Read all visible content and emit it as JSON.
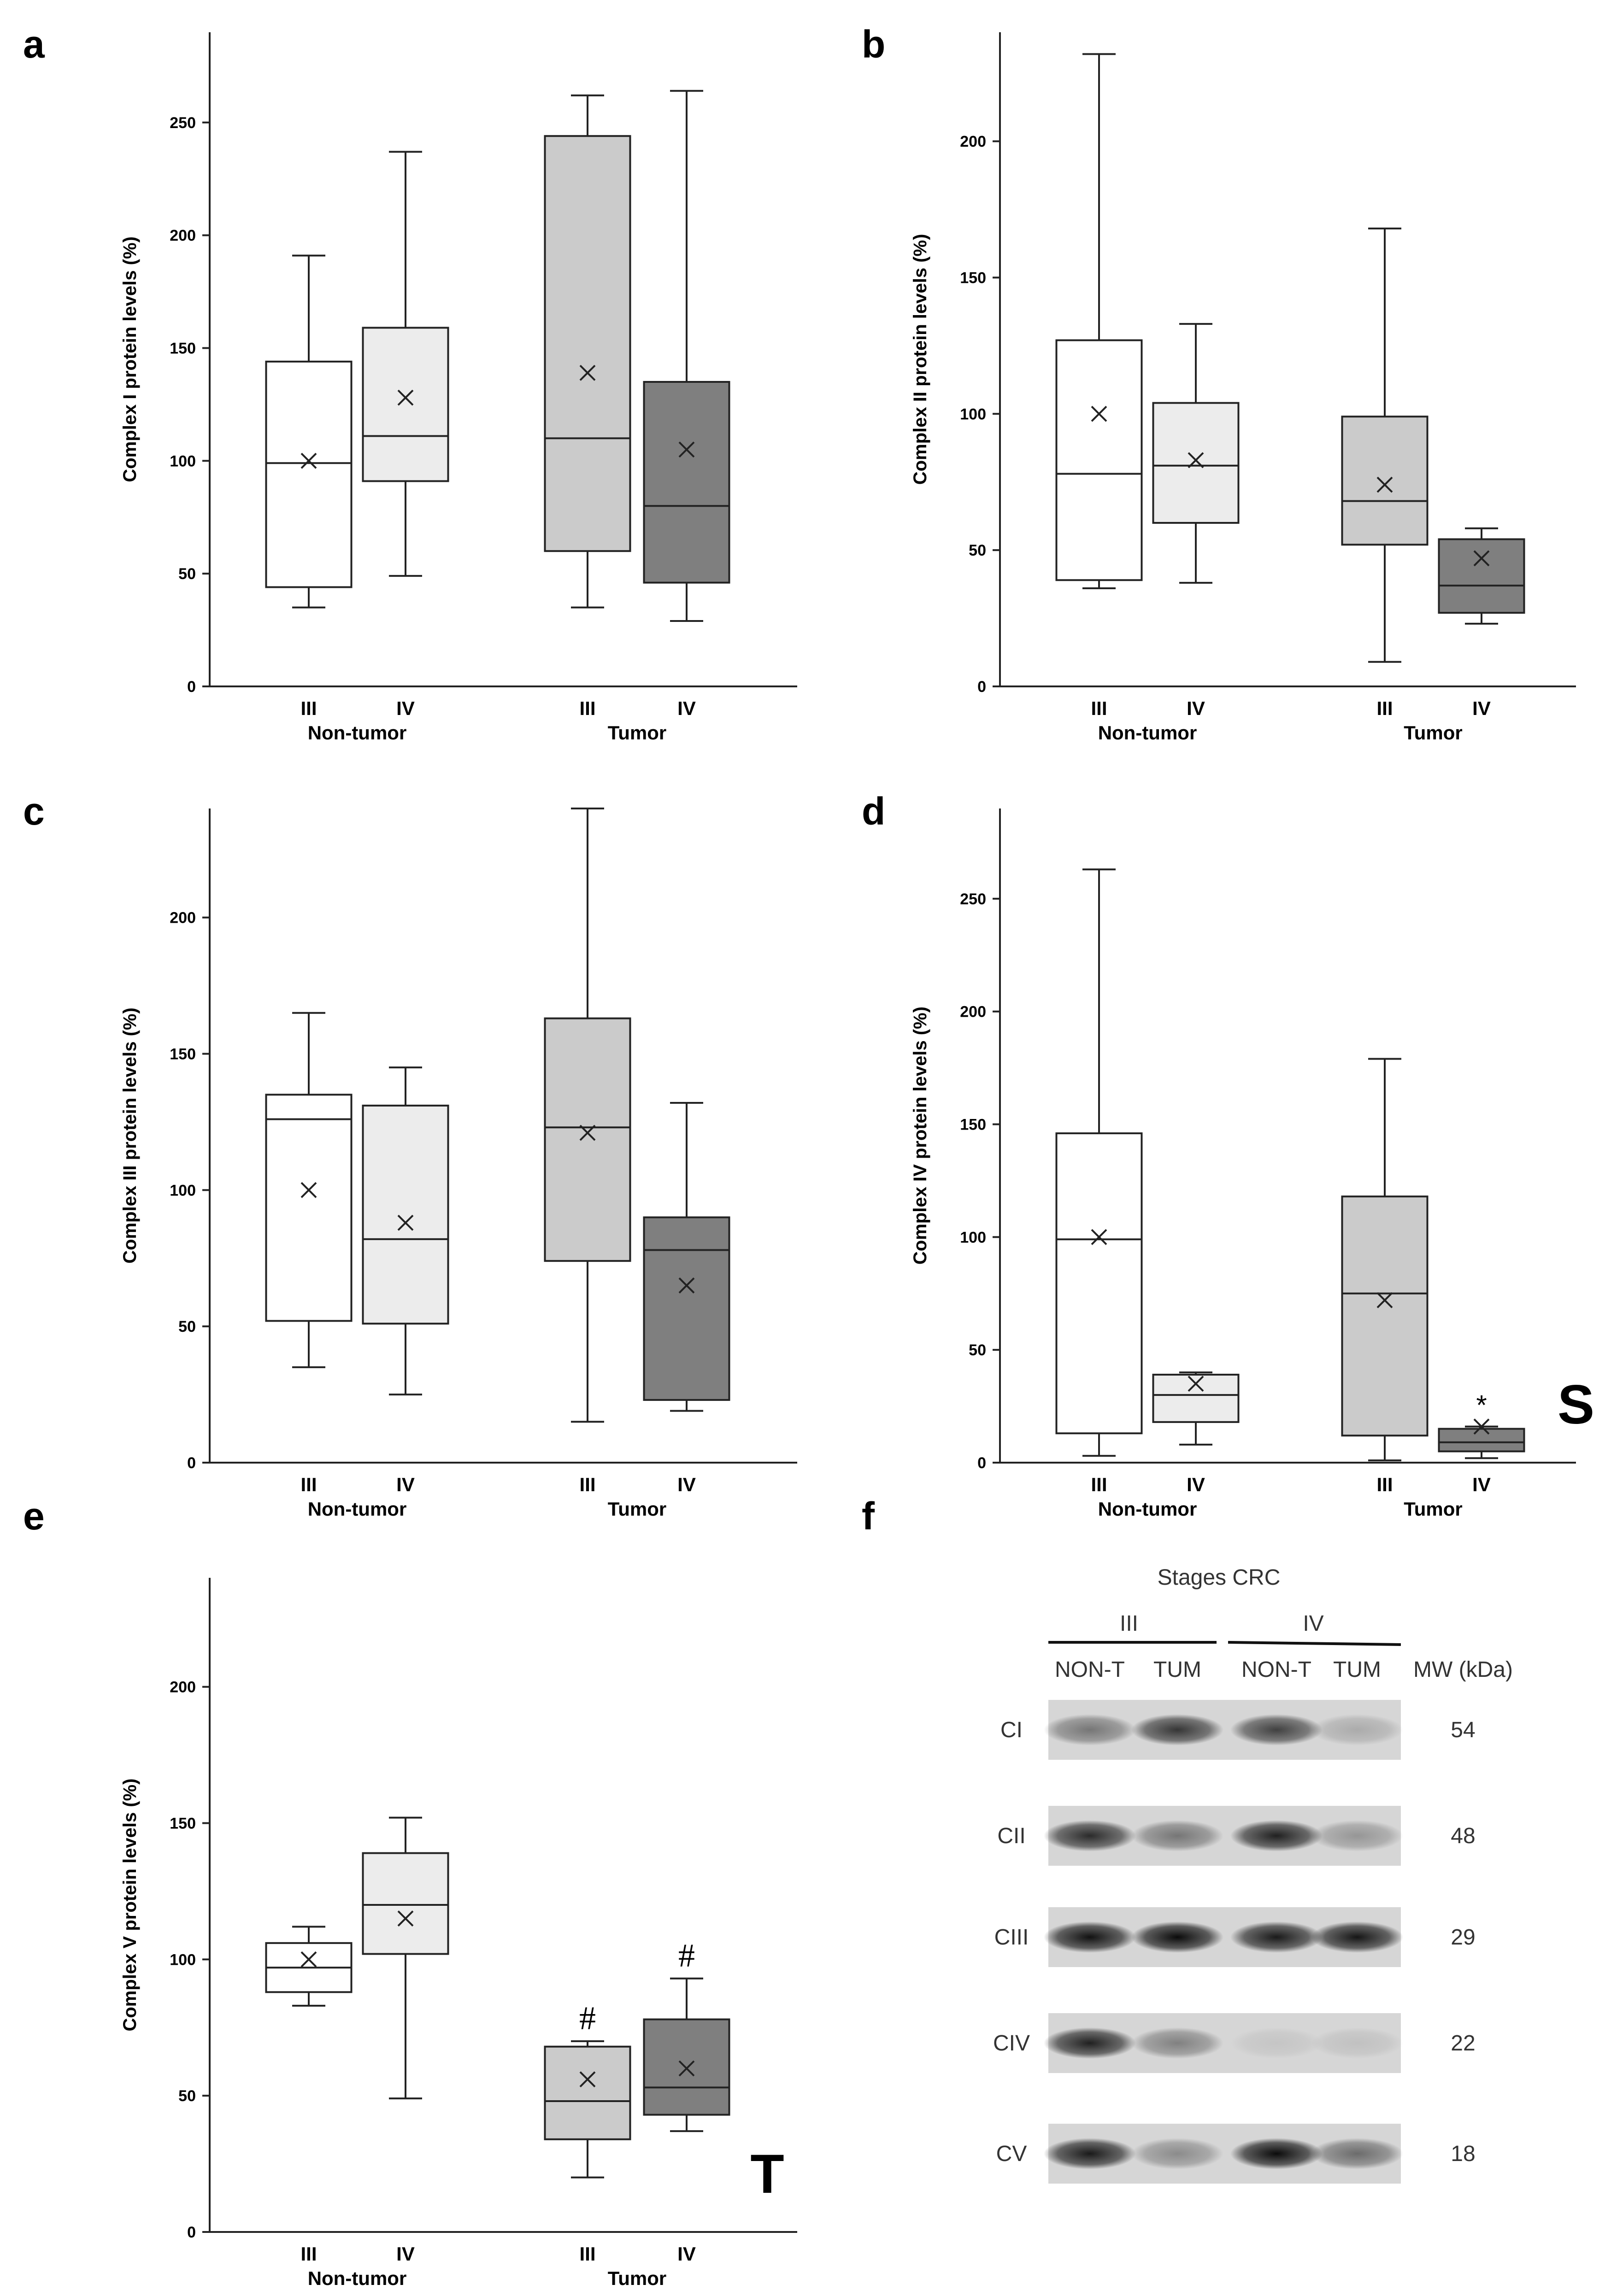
{
  "figure": {
    "colors": {
      "non_tumor_III": "#ffffff",
      "non_tumor_IV": "#ececec",
      "tumor_III": "#cbcbcb",
      "tumor_IV": "#7f7f7f",
      "line": "#222222"
    }
  },
  "chart_data": [
    {
      "panel": "a",
      "type": "box",
      "ylabel": "Complex I protein levels (%)",
      "ylim": [
        0,
        290
      ],
      "yticks": [
        0,
        50,
        100,
        150,
        200,
        250
      ],
      "groups": [
        "Non-tumor",
        "Tumor"
      ],
      "stages": [
        "III",
        "IV"
      ],
      "boxes": [
        {
          "group": "Non-tumor",
          "stage": "III",
          "min": 35,
          "q1": 44,
          "median": 99,
          "q3": 144,
          "max": 191,
          "mean": 100
        },
        {
          "group": "Non-tumor",
          "stage": "IV",
          "min": 49,
          "q1": 91,
          "median": 111,
          "q3": 159,
          "max": 237,
          "mean": 128
        },
        {
          "group": "Tumor",
          "stage": "III",
          "min": 35,
          "q1": 60,
          "median": 110,
          "q3": 244,
          "max": 262,
          "mean": 139
        },
        {
          "group": "Tumor",
          "stage": "IV",
          "min": 29,
          "q1": 46,
          "median": 80,
          "q3": 135,
          "max": 264,
          "mean": 105
        }
      ],
      "annotations": []
    },
    {
      "panel": "b",
      "type": "box",
      "ylabel": "Complex II protein levels (%)",
      "ylim": [
        0,
        240
      ],
      "yticks": [
        0,
        50,
        100,
        150,
        200
      ],
      "groups": [
        "Non-tumor",
        "Tumor"
      ],
      "stages": [
        "III",
        "IV"
      ],
      "boxes": [
        {
          "group": "Non-tumor",
          "stage": "III",
          "min": 36,
          "q1": 39,
          "median": 78,
          "q3": 127,
          "max": 232,
          "mean": 100
        },
        {
          "group": "Non-tumor",
          "stage": "IV",
          "min": 38,
          "q1": 60,
          "median": 81,
          "q3": 104,
          "max": 133,
          "mean": 83
        },
        {
          "group": "Tumor",
          "stage": "III",
          "min": 9,
          "q1": 52,
          "median": 68,
          "q3": 99,
          "max": 168,
          "mean": 74
        },
        {
          "group": "Tumor",
          "stage": "IV",
          "min": 23,
          "q1": 27,
          "median": 37,
          "q3": 54,
          "max": 58,
          "mean": 47
        }
      ],
      "annotations": []
    },
    {
      "panel": "c",
      "type": "box",
      "ylabel": "Complex III protein levels (%)",
      "ylim": [
        0,
        240
      ],
      "yticks": [
        0,
        50,
        100,
        150,
        200
      ],
      "groups": [
        "Non-tumor",
        "Tumor"
      ],
      "stages": [
        "III",
        "IV"
      ],
      "boxes": [
        {
          "group": "Non-tumor",
          "stage": "III",
          "min": 35,
          "q1": 52,
          "median": 126,
          "q3": 135,
          "max": 165,
          "mean": 100
        },
        {
          "group": "Non-tumor",
          "stage": "IV",
          "min": 25,
          "q1": 51,
          "median": 82,
          "q3": 131,
          "max": 145,
          "mean": 88
        },
        {
          "group": "Tumor",
          "stage": "III",
          "min": 15,
          "q1": 74,
          "median": 123,
          "q3": 163,
          "max": 240,
          "mean": 121
        },
        {
          "group": "Tumor",
          "stage": "IV",
          "min": 19,
          "q1": 23,
          "median": 78,
          "q3": 90,
          "max": 132,
          "mean": 65
        }
      ],
      "annotations": []
    },
    {
      "panel": "d",
      "type": "box",
      "ylabel": "Complex IV protein levels (%)",
      "ylim": [
        0,
        290
      ],
      "yticks": [
        0,
        50,
        100,
        150,
        200,
        250
      ],
      "groups": [
        "Non-tumor",
        "Tumor"
      ],
      "stages": [
        "III",
        "IV"
      ],
      "boxes": [
        {
          "group": "Non-tumor",
          "stage": "III",
          "min": 3,
          "q1": 13,
          "median": 99,
          "q3": 146,
          "max": 263,
          "mean": 100
        },
        {
          "group": "Non-tumor",
          "stage": "IV",
          "min": 8,
          "q1": 18,
          "median": 30,
          "q3": 39,
          "max": 40,
          "mean": 35
        },
        {
          "group": "Tumor",
          "stage": "III",
          "min": 1,
          "q1": 12,
          "median": 75,
          "q3": 118,
          "max": 179,
          "mean": 72
        },
        {
          "group": "Tumor",
          "stage": "IV",
          "min": 2,
          "q1": 5,
          "median": 9,
          "q3": 15,
          "max": 16,
          "mean": 16
        }
      ],
      "annotations": [
        {
          "target": "Tumor-IV",
          "text": "*"
        }
      ],
      "side_letter": "S"
    },
    {
      "panel": "e",
      "type": "box",
      "ylabel": "Complex V protein levels (%)",
      "ylim": [
        0,
        240
      ],
      "yticks": [
        0,
        50,
        100,
        150,
        200
      ],
      "groups": [
        "Non-tumor",
        "Tumor"
      ],
      "stages": [
        "III",
        "IV"
      ],
      "boxes": [
        {
          "group": "Non-tumor",
          "stage": "III",
          "min": 83,
          "q1": 88,
          "median": 97,
          "q3": 106,
          "max": 112,
          "mean": 100
        },
        {
          "group": "Non-tumor",
          "stage": "IV",
          "min": 49,
          "q1": 102,
          "median": 120,
          "q3": 139,
          "max": 152,
          "mean": 115
        },
        {
          "group": "Tumor",
          "stage": "III",
          "min": 20,
          "q1": 34,
          "median": 48,
          "q3": 68,
          "max": 70,
          "mean": 56
        },
        {
          "group": "Tumor",
          "stage": "IV",
          "min": 37,
          "q1": 43,
          "median": 53,
          "q3": 78,
          "max": 93,
          "mean": 60
        }
      ],
      "annotations": [
        {
          "target": "Tumor-III",
          "text": "#"
        },
        {
          "target": "Tumor-IV",
          "text": "#"
        }
      ],
      "side_letter": "T"
    },
    {
      "panel": "f",
      "type": "blot",
      "title": "Stages  CRC",
      "stage_headers": [
        "III",
        "IV"
      ],
      "lane_labels": [
        "NON-T",
        "TUM",
        "NON-T",
        "TUM"
      ],
      "mw_header": "MW (kDa)",
      "rows": [
        {
          "label": "CI",
          "mw": "54",
          "intensities": [
            0.45,
            0.75,
            0.7,
            0.2
          ]
        },
        {
          "label": "CII",
          "mw": "48",
          "intensities": [
            0.8,
            0.45,
            0.85,
            0.3
          ]
        },
        {
          "label": "CIII",
          "mw": "29",
          "intensities": [
            0.92,
            0.95,
            0.88,
            0.9
          ]
        },
        {
          "label": "CIV",
          "mw": "22",
          "intensities": [
            0.85,
            0.4,
            0.08,
            0.1
          ]
        },
        {
          "label": "CV",
          "mw": "18",
          "intensities": [
            0.88,
            0.35,
            0.95,
            0.5
          ]
        }
      ]
    }
  ]
}
